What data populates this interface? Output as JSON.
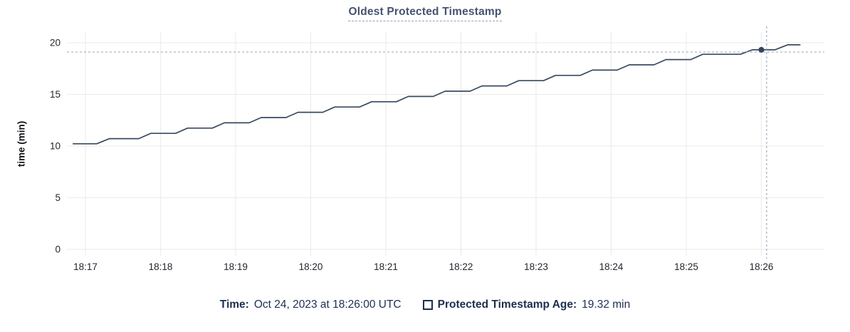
{
  "title": "Oldest Protected Timestamp",
  "footer": {
    "time_label": "Time:",
    "time_value": "Oct 24, 2023 at 18:26:00 UTC",
    "series_label": "Protected Timestamp Age:",
    "series_value": "19.32 min"
  },
  "colors": {
    "title_text": "#46536e",
    "title_underline": "#90a1b8",
    "series_line": "#394a61",
    "hover_dot": "#33445c",
    "grid": "#ededed",
    "crosshair": "#9db0bf",
    "tick_text": "#23262d",
    "legend_text": "#1d2f51",
    "background": "#ffffff"
  },
  "chart_data": {
    "type": "line",
    "title": "Oldest Protected Timestamp",
    "xlabel": "",
    "ylabel": "time (min)",
    "x_tick_labels": [
      "18:17",
      "18:18",
      "18:19",
      "18:20",
      "18:21",
      "18:22",
      "18:23",
      "18:24",
      "18:25",
      "18:26"
    ],
    "y_ticks": [
      0,
      5,
      10,
      15,
      20
    ],
    "ylim": [
      0,
      21
    ],
    "x_domain_minutes_after_1817": [
      -0.25,
      9.85
    ],
    "grid": true,
    "legend_position": "bottom",
    "series": [
      {
        "name": "Protected Timestamp Age",
        "unit": "min",
        "points_minutes_after_1817": [
          [
            -0.17,
            10.22
          ],
          [
            0.15,
            10.22
          ],
          [
            0.32,
            10.72
          ],
          [
            0.71,
            10.72
          ],
          [
            0.87,
            11.23
          ],
          [
            1.2,
            11.23
          ],
          [
            1.36,
            11.74
          ],
          [
            1.69,
            11.74
          ],
          [
            1.85,
            12.25
          ],
          [
            2.18,
            12.25
          ],
          [
            2.34,
            12.76
          ],
          [
            2.67,
            12.76
          ],
          [
            2.83,
            13.27
          ],
          [
            3.16,
            13.27
          ],
          [
            3.32,
            13.78
          ],
          [
            3.65,
            13.78
          ],
          [
            3.81,
            14.29
          ],
          [
            4.14,
            14.29
          ],
          [
            4.3,
            14.8
          ],
          [
            4.63,
            14.8
          ],
          [
            4.79,
            15.31
          ],
          [
            5.12,
            15.31
          ],
          [
            5.28,
            15.82
          ],
          [
            5.61,
            15.82
          ],
          [
            5.77,
            16.33
          ],
          [
            6.1,
            16.33
          ],
          [
            6.26,
            16.84
          ],
          [
            6.59,
            16.84
          ],
          [
            6.75,
            17.35
          ],
          [
            7.08,
            17.35
          ],
          [
            7.24,
            17.86
          ],
          [
            7.57,
            17.86
          ],
          [
            7.73,
            18.37
          ],
          [
            8.06,
            18.37
          ],
          [
            8.22,
            18.88
          ],
          [
            8.72,
            18.88
          ],
          [
            8.88,
            19.32
          ],
          [
            9.18,
            19.32
          ],
          [
            9.35,
            19.8
          ],
          [
            9.52,
            19.8
          ]
        ]
      }
    ],
    "hover": {
      "time_label": "18:26",
      "time_full": "Oct 24, 2023 at 18:26:00 UTC",
      "value_min": 19.32,
      "point_t": 9.0,
      "crosshair_t": 9.07,
      "crosshair_value": 19.1
    }
  }
}
